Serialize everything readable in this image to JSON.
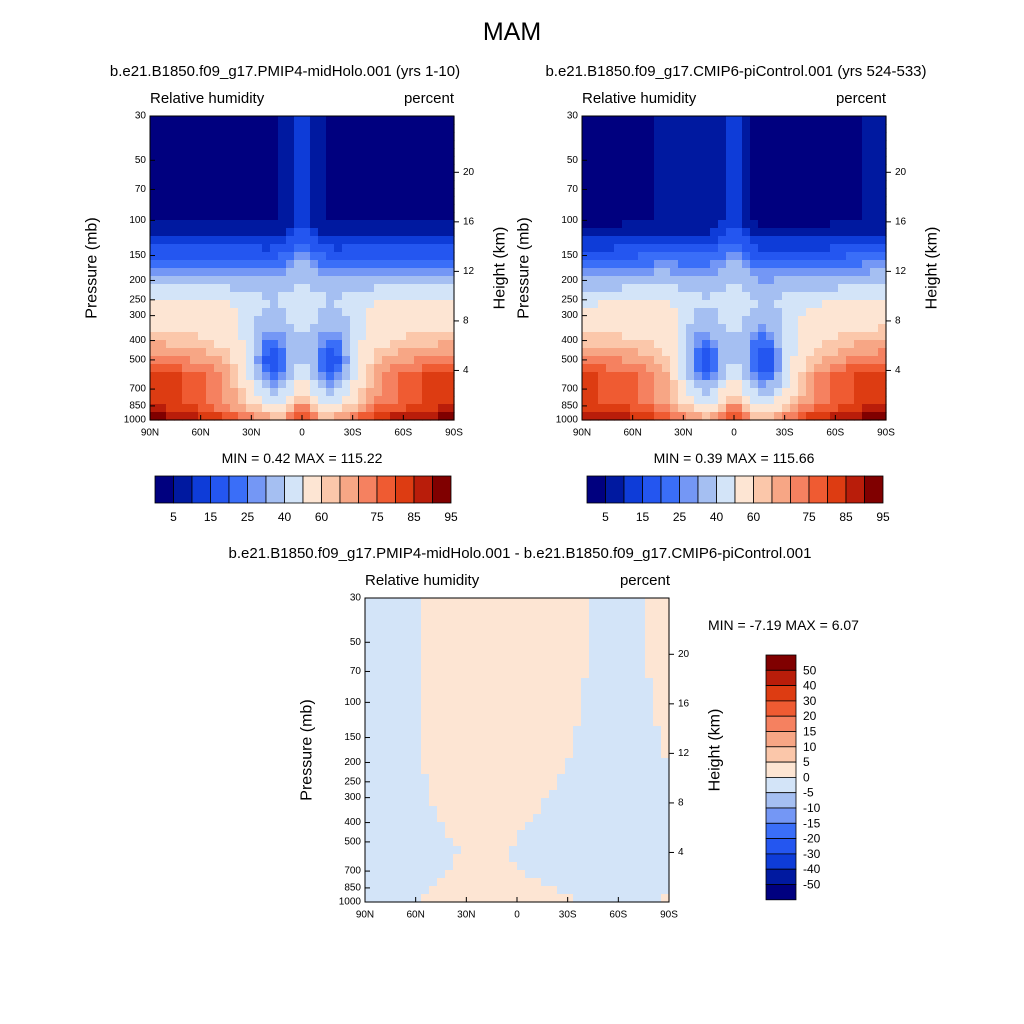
{
  "main_title": "MAM",
  "panels": [
    {
      "title": "b.e21.B1850.f09_g17.PMIP4-midHolo.001 (yrs 1-10)",
      "left_label": "Relative humidity",
      "right_label": "percent",
      "stats": "MIN =   0.42  MAX = 115.22",
      "ylabel": "Pressure (mb)",
      "y2label": "Height (km)",
      "colorbar_labels": [
        "5",
        "15",
        "25",
        "40",
        "60",
        "75",
        "85",
        "95"
      ]
    },
    {
      "title": "b.e21.B1850.f09_g17.CMIP6-piControl.001 (yrs 524-533)",
      "left_label": "Relative humidity",
      "right_label": "percent",
      "stats": "MIN =   0.39  MAX = 115.66",
      "ylabel": "Pressure (mb)",
      "y2label": "Height (km)",
      "colorbar_labels": [
        "5",
        "15",
        "25",
        "40",
        "60",
        "75",
        "85",
        "95"
      ]
    },
    {
      "title": "b.e21.B1850.f09_g17.PMIP4-midHolo.001 - b.e21.B1850.f09_g17.CMIP6-piControl.001",
      "left_label": "Relative humidity",
      "right_label": "percent",
      "stats": "MIN =  -7.19  MAX =   6.07",
      "ylabel": "Pressure (mb)",
      "y2label": "Height (km)",
      "colorbar_labels": [
        "50",
        "40",
        "30",
        "20",
        "15",
        "10",
        "5",
        "0",
        "-5",
        "-10",
        "-15",
        "-20",
        "-30",
        "-40",
        "-50"
      ]
    }
  ],
  "chart_data": [
    {
      "type": "heatmap",
      "title": "b.e21.B1850.f09_g17.PMIP4-midHolo.001 (yrs 1-10)",
      "variable": "Relative humidity",
      "units": "percent",
      "x_ticks": [
        "90N",
        "60N",
        "30N",
        "0",
        "30S",
        "60S",
        "90S"
      ],
      "x_range": [
        90,
        -90
      ],
      "y_ticks": [
        30,
        50,
        70,
        100,
        150,
        200,
        250,
        300,
        400,
        500,
        700,
        850,
        1000
      ],
      "y_range": [
        1000,
        30
      ],
      "y_scale": "log",
      "y2_ticks": [
        20,
        16,
        12,
        8,
        4
      ],
      "xlabel": "",
      "ylabel": "Pressure (mb)",
      "y2label": "Height (km)",
      "min": 0.42,
      "max": 115.22,
      "levels": [
        5,
        10,
        15,
        20,
        25,
        30,
        40,
        50,
        60,
        65,
        70,
        75,
        80,
        85,
        90,
        95
      ],
      "colors": [
        "#00007f",
        "#0019a0",
        "#0e3cd8",
        "#2456f0",
        "#3a6ef8",
        "#7497f5",
        "#a5bff2",
        "#d3e4f8",
        "#fde5d3",
        "#fbc7aa",
        "#f7a685",
        "#f58160",
        "#ef5b32",
        "#dd3c12",
        "#b91d0a",
        "#800000"
      ]
    },
    {
      "type": "heatmap",
      "title": "b.e21.B1850.f09_g17.CMIP6-piControl.001 (yrs 524-533)",
      "variable": "Relative humidity",
      "units": "percent",
      "x_ticks": [
        "90N",
        "60N",
        "30N",
        "0",
        "30S",
        "60S",
        "90S"
      ],
      "x_range": [
        90,
        -90
      ],
      "y_ticks": [
        30,
        50,
        70,
        100,
        150,
        200,
        250,
        300,
        400,
        500,
        700,
        850,
        1000
      ],
      "y_range": [
        1000,
        30
      ],
      "y_scale": "log",
      "y2_ticks": [
        20,
        16,
        12,
        8,
        4
      ],
      "xlabel": "",
      "ylabel": "Pressure (mb)",
      "y2label": "Height (km)",
      "min": 0.39,
      "max": 115.66,
      "levels": [
        5,
        10,
        15,
        20,
        25,
        30,
        40,
        50,
        60,
        65,
        70,
        75,
        80,
        85,
        90,
        95
      ],
      "colors": [
        "#00007f",
        "#0019a0",
        "#0e3cd8",
        "#2456f0",
        "#3a6ef8",
        "#7497f5",
        "#a5bff2",
        "#d3e4f8",
        "#fde5d3",
        "#fbc7aa",
        "#f7a685",
        "#f58160",
        "#ef5b32",
        "#dd3c12",
        "#b91d0a",
        "#800000"
      ]
    },
    {
      "type": "heatmap",
      "title": "b.e21.B1850.f09_g17.PMIP4-midHolo.001 - b.e21.B1850.f09_g17.CMIP6-piControl.001",
      "variable": "Relative humidity",
      "units": "percent",
      "x_ticks": [
        "90N",
        "60N",
        "30N",
        "0",
        "30S",
        "60S",
        "90S"
      ],
      "x_range": [
        90,
        -90
      ],
      "y_ticks": [
        30,
        50,
        70,
        100,
        150,
        200,
        250,
        300,
        400,
        500,
        700,
        850,
        1000
      ],
      "y_range": [
        1000,
        30
      ],
      "y_scale": "log",
      "y2_ticks": [
        20,
        16,
        12,
        8,
        4
      ],
      "xlabel": "",
      "ylabel": "Pressure (mb)",
      "y2label": "Height (km)",
      "min": -7.19,
      "max": 6.07,
      "levels": [
        -50,
        -40,
        -30,
        -20,
        -15,
        -10,
        -5,
        0,
        5,
        10,
        15,
        20,
        30,
        40,
        50
      ],
      "colors": [
        "#00007f",
        "#0019a0",
        "#0e3cd8",
        "#2456f0",
        "#3a6ef8",
        "#7497f5",
        "#a5bff2",
        "#d3e4f8",
        "#fde5d3",
        "#fbc7aa",
        "#f7a685",
        "#f58160",
        "#ef5b32",
        "#dd3c12",
        "#b91d0a",
        "#800000"
      ]
    }
  ]
}
